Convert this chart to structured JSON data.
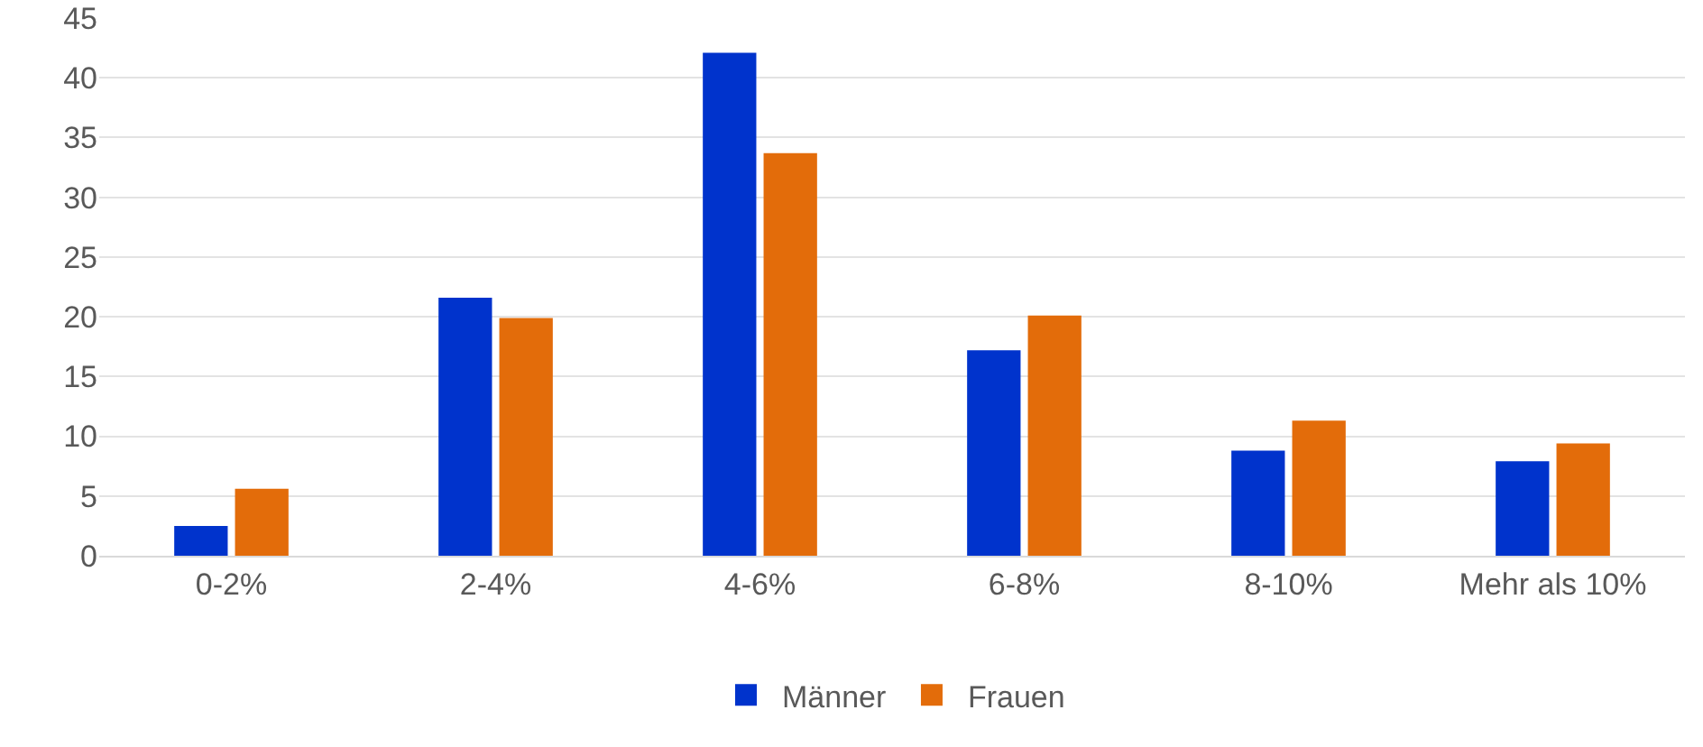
{
  "chart_data": {
    "type": "bar",
    "categories": [
      "0-2%",
      "2-4%",
      "4-6%",
      "6-8%",
      "8-10%",
      "Mehr als 10%"
    ],
    "series": [
      {
        "name": "Männer",
        "color": "#0033cc",
        "values": [
          2.5,
          21.6,
          42.1,
          17.2,
          8.8,
          7.9
        ]
      },
      {
        "name": "Frauen",
        "color": "#e36c0a",
        "values": [
          5.6,
          19.9,
          33.7,
          20.1,
          11.3,
          9.4
        ]
      }
    ],
    "ylim": [
      0,
      45
    ],
    "yticks": [
      0,
      5,
      10,
      15,
      20,
      25,
      30,
      35,
      40,
      45
    ],
    "grid": "y",
    "legend": "bottom"
  }
}
